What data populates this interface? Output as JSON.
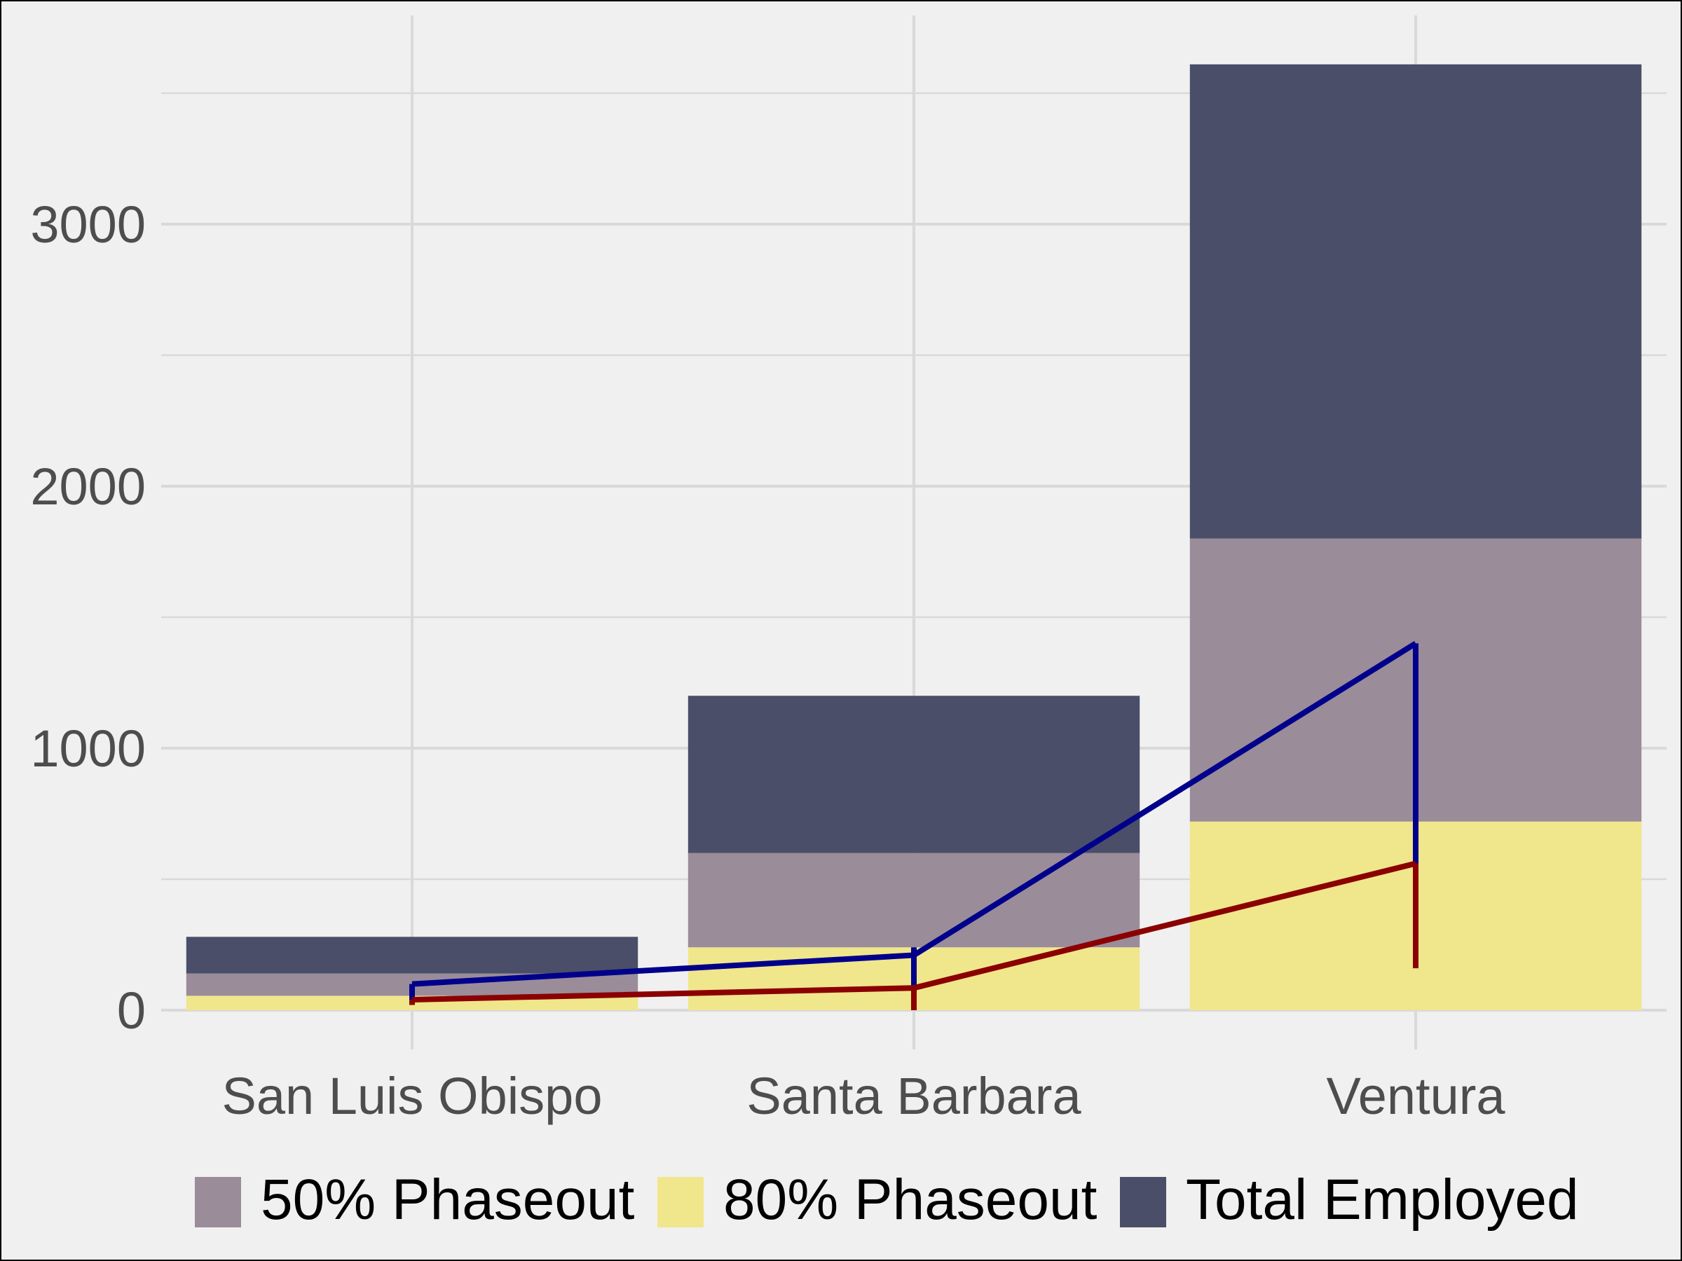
{
  "chart_data": {
    "type": "bar",
    "stacked": true,
    "title": "",
    "xlabel": "",
    "ylabel": "",
    "categories": [
      "San Luis Obispo",
      "Santa Barbara",
      "Ventura"
    ],
    "series": [
      {
        "name": "80% Phaseout",
        "color": "#f0e68c",
        "values": [
          55,
          240,
          720
        ]
      },
      {
        "name": "50% Phaseout",
        "color": "#9b8c9a",
        "values": [
          85,
          360,
          1080
        ]
      },
      {
        "name": "Total Employed",
        "color": "#4a4e69",
        "values": [
          140,
          600,
          1810
        ]
      }
    ],
    "lines": [
      {
        "color": "#00008b",
        "points": [
          [
            0,
            100
          ],
          [
            1,
            210
          ],
          [
            2,
            1400
          ]
        ],
        "ranges": [
          [
            40,
            100
          ],
          [
            0,
            240
          ],
          [
            400,
            1400
          ]
        ]
      },
      {
        "color": "#8b0000",
        "points": [
          [
            0,
            40
          ],
          [
            1,
            85
          ],
          [
            2,
            560
          ]
        ],
        "ranges": [
          [
            20,
            40
          ],
          [
            0,
            85
          ],
          [
            160,
            560
          ]
        ]
      }
    ],
    "yticks": [
      0,
      1000,
      2000,
      3000
    ],
    "ylim": [
      -160,
      3800
    ],
    "grid": true,
    "legend": {
      "position": "bottom",
      "order": [
        "50% Phaseout",
        "80% Phaseout",
        "Total Employed"
      ]
    },
    "background": "#f0f0f0",
    "grid_color": "#d9d9d9"
  }
}
